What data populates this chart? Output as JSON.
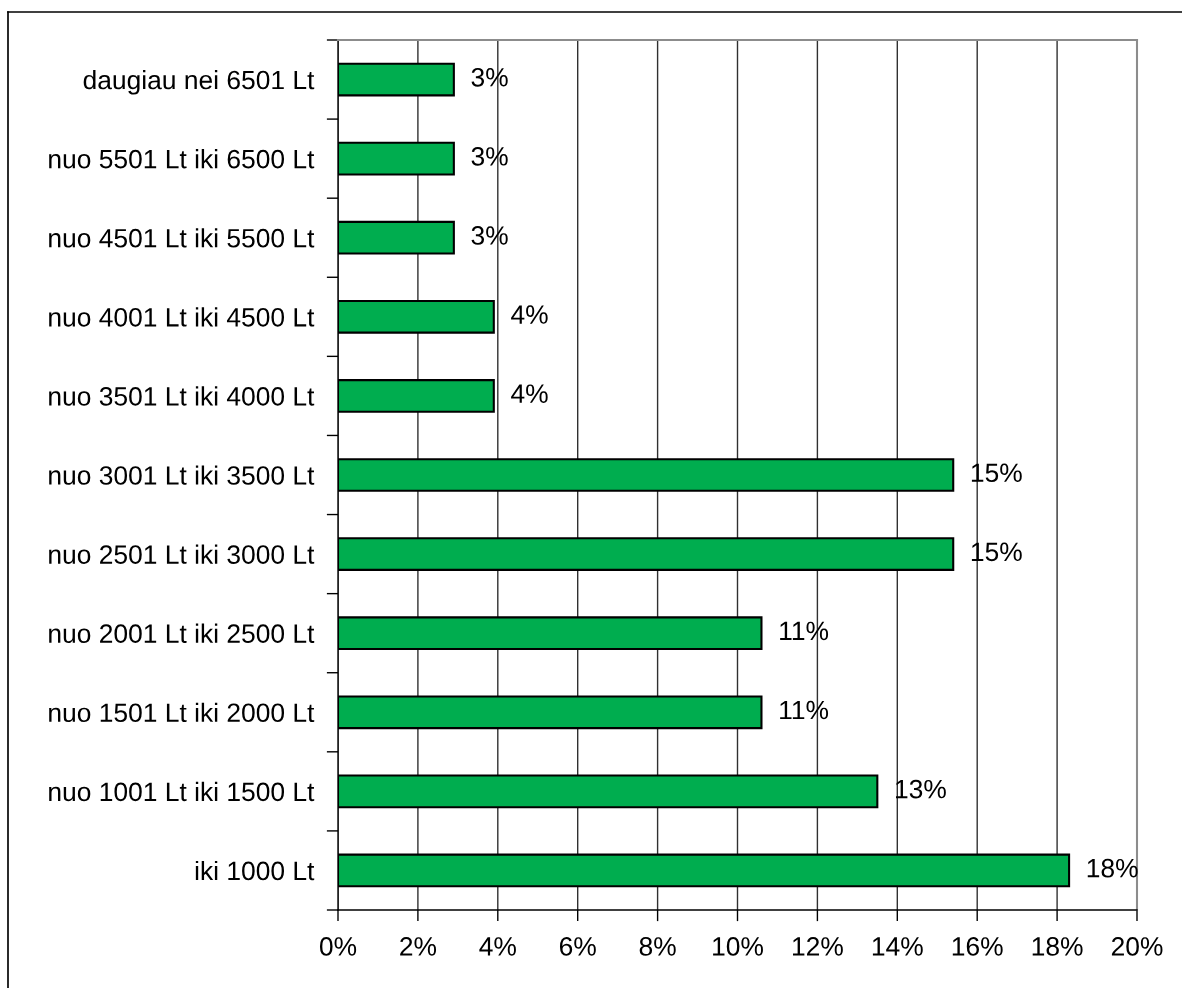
{
  "chart_data": {
    "type": "bar",
    "orientation": "horizontal",
    "categories": [
      "daugiau nei 6501 Lt",
      "nuo 5501 Lt iki 6500 Lt",
      "nuo 4501 Lt iki 5500 Lt",
      "nuo 4001 Lt iki 4500 Lt",
      "nuo 3501 Lt iki 4000 Lt",
      "nuo 3001 Lt iki 3500 Lt",
      "nuo 2501 Lt iki 3000 Lt",
      "nuo 2001 Lt iki 2500 Lt",
      "nuo 1501 Lt iki 2000 Lt",
      "nuo 1001 Lt iki 1500 Lt",
      "iki 1000 Lt"
    ],
    "values": [
      2.9,
      2.9,
      2.9,
      3.9,
      3.9,
      15.4,
      15.4,
      10.6,
      10.6,
      13.5,
      18.3
    ],
    "value_labels": [
      "3%",
      "3%",
      "3%",
      "4%",
      "4%",
      "15%",
      "15%",
      "11%",
      "11%",
      "13%",
      "18%"
    ],
    "color": "#00ad4f",
    "xlim": [
      0,
      20
    ],
    "xticks": [
      {
        "value": 0,
        "label": "0%"
      },
      {
        "value": 2,
        "label": "2%"
      },
      {
        "value": 4,
        "label": "4%"
      },
      {
        "value": 6,
        "label": "6%"
      },
      {
        "value": 8,
        "label": "8%"
      },
      {
        "value": 10,
        "label": "10%"
      },
      {
        "value": 12,
        "label": "12%"
      },
      {
        "value": 14,
        "label": "14%"
      },
      {
        "value": 16,
        "label": "16%"
      },
      {
        "value": 18,
        "label": "18%"
      },
      {
        "value": 20,
        "label": "20%"
      }
    ],
    "grid": "x"
  }
}
